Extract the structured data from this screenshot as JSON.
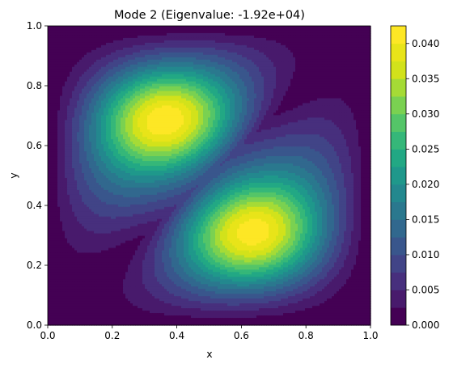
{
  "chart_data": {
    "type": "heatmap",
    "title": "Mode 2 (Eigenvalue: -1.92e+04)",
    "xlabel": "x",
    "ylabel": "y",
    "xlim": [
      0.0,
      1.0
    ],
    "ylim": [
      0.0,
      1.0
    ],
    "x_ticks": [
      "0.0",
      "0.2",
      "0.4",
      "0.6",
      "0.8",
      "1.0"
    ],
    "y_ticks": [
      "0.0",
      "0.2",
      "0.4",
      "0.6",
      "0.8",
      "1.0"
    ],
    "grid": false,
    "colormap": "viridis",
    "colorbar": {
      "range": [
        0.0,
        0.0425
      ],
      "ticks": [
        "0.000",
        "0.005",
        "0.010",
        "0.015",
        "0.020",
        "0.025",
        "0.030",
        "0.035",
        "0.040"
      ],
      "levels": [
        0.0,
        0.0025,
        0.005,
        0.0075,
        0.01,
        0.0125,
        0.015,
        0.0175,
        0.02,
        0.0225,
        0.025,
        0.0275,
        0.03,
        0.0325,
        0.035,
        0.0375,
        0.04,
        0.0425
      ]
    },
    "peaks": [
      {
        "x": 0.33,
        "y": 0.72,
        "value": 0.0425
      },
      {
        "x": 0.67,
        "y": 0.27,
        "value": 0.0425
      }
    ],
    "nodal_line": "diagonal from (0,0.5) through (0.5,0.5) to (1,0.5), curving along lower-left / upper-right",
    "colors": [
      "#440154",
      "#481a6c",
      "#472f7d",
      "#414487",
      "#39568c",
      "#31688e",
      "#2a788e",
      "#23888e",
      "#1f988b",
      "#22a884",
      "#35b779",
      "#54c568",
      "#7ad151",
      "#a5db36",
      "#d2e21b",
      "#e8e419",
      "#fde725"
    ]
  }
}
